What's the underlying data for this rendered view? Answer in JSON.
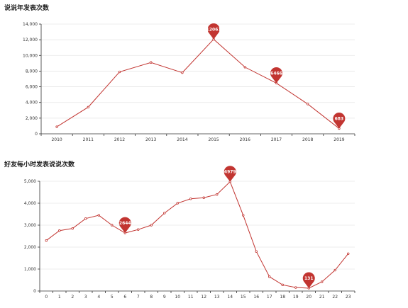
{
  "chart_data": [
    {
      "type": "line",
      "title": "说说年发表次数",
      "x": [
        "2010",
        "2011",
        "2012",
        "2013",
        "2014",
        "2015",
        "2016",
        "2017",
        "2018",
        "2019"
      ],
      "values": [
        900,
        3400,
        7900,
        9100,
        7800,
        12061,
        8500,
        6466,
        3800,
        683
      ],
      "ylim": [
        0,
        14000
      ],
      "yticks": [
        "0",
        "2,000",
        "4,000",
        "6,000",
        "8,000",
        "10,000",
        "12,000",
        "14,000"
      ],
      "markers": [
        {
          "index": 5,
          "label": "12061"
        },
        {
          "index": 7,
          "label": "6466"
        },
        {
          "index": 9,
          "label": "683"
        }
      ],
      "line_color": "#c23531",
      "grid": true
    },
    {
      "type": "line",
      "title": "好友每小时发表说说次数",
      "x": [
        "0",
        "1",
        "2",
        "3",
        "4",
        "5",
        "6",
        "7",
        "8",
        "9",
        "10",
        "11",
        "12",
        "13",
        "14",
        "15",
        "16",
        "17",
        "18",
        "19",
        "20",
        "21",
        "22",
        "23"
      ],
      "values": [
        2300,
        2750,
        2850,
        3300,
        3450,
        3000,
        2644,
        2800,
        3000,
        3550,
        4000,
        4200,
        4250,
        4400,
        4979,
        3450,
        1800,
        650,
        280,
        160,
        131,
        420,
        950,
        1700
      ],
      "ylim": [
        0,
        5000
      ],
      "yticks": [
        "0",
        "1,000",
        "2,000",
        "3,000",
        "4,000",
        "5,000"
      ],
      "markers": [
        {
          "index": 6,
          "label": "2644"
        },
        {
          "index": 14,
          "label": "4979"
        },
        {
          "index": 20,
          "label": "131"
        }
      ],
      "line_color": "#c23531",
      "grid": true
    }
  ]
}
